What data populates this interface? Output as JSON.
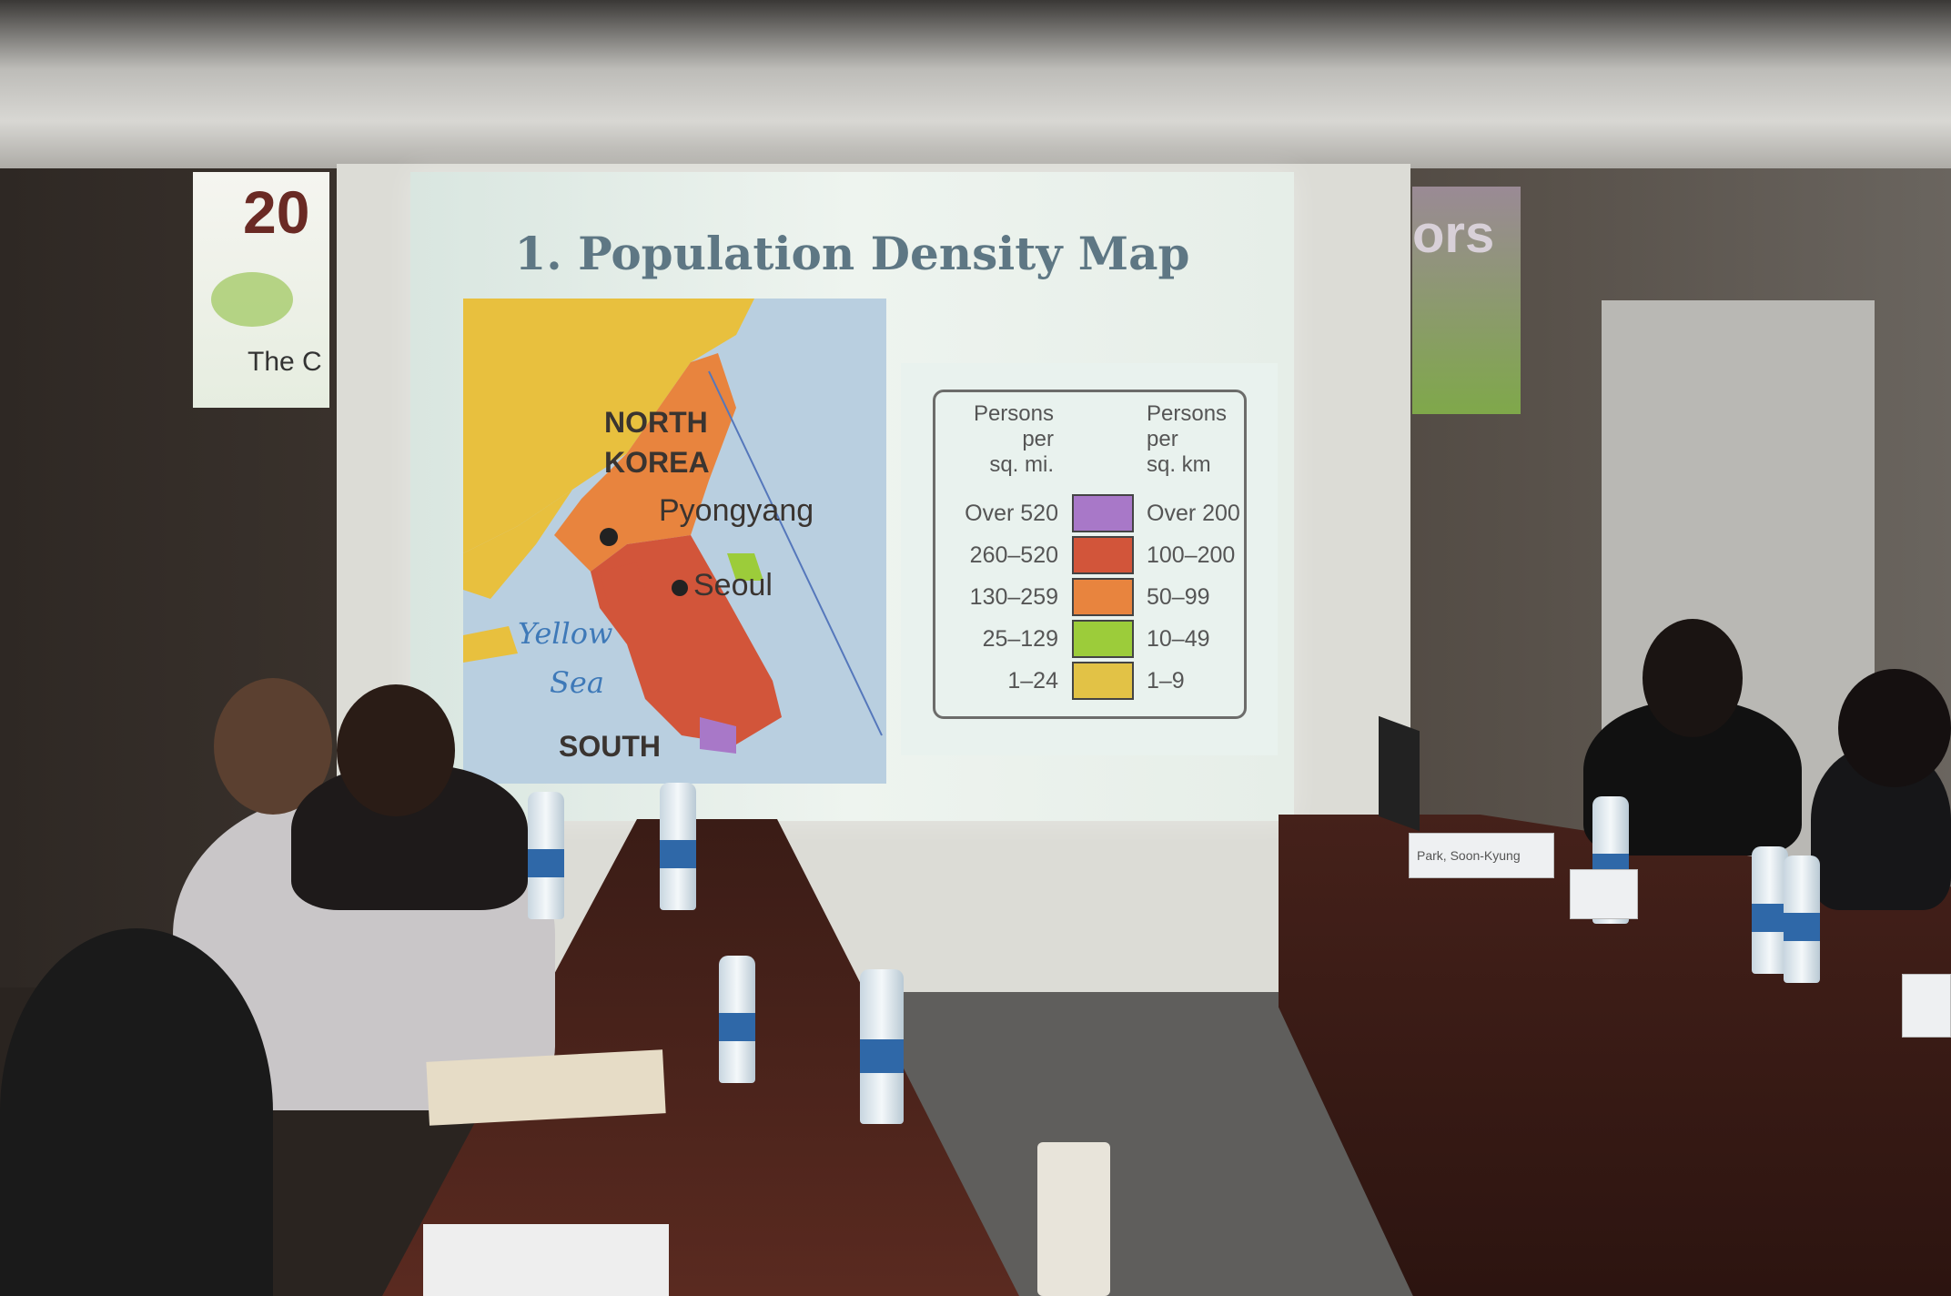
{
  "slide": {
    "title": "1. Population Density Map",
    "map_labels": {
      "north_korea_1": "NORTH",
      "north_korea_2": "KOREA",
      "pyongyang": "Pyongyang",
      "seoul": "Seoul",
      "yellow_1": "Yellow",
      "yellow_2": "Sea",
      "south": "SOUTH"
    },
    "legend": {
      "left_header": [
        "Persons",
        "per",
        "sq. mi."
      ],
      "right_header": [
        "Persons",
        "per",
        "sq. km"
      ],
      "rows": [
        {
          "mi": "Over 520",
          "km": "Over 200",
          "color": "#a878c8"
        },
        {
          "mi": "260–520",
          "km": "100–200",
          "color": "#d2553a"
        },
        {
          "mi": "130–259",
          "km": "50–99",
          "color": "#e8843e"
        },
        {
          "mi": "25–129",
          "km": "10–49",
          "color": "#9ccc3a"
        },
        {
          "mi": "1–24",
          "km": "1–9",
          "color": "#e2c246"
        }
      ]
    }
  },
  "banners": {
    "left_top": "20",
    "left_bottom": "The C",
    "right_top": "ors"
  },
  "nameplate": "Park, Soon-Kyung"
}
